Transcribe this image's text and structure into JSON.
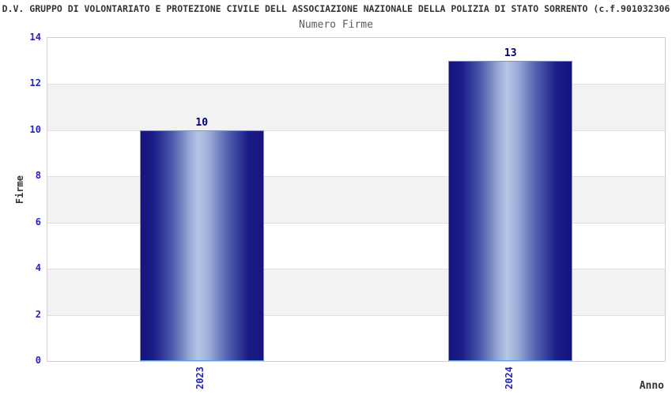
{
  "chart_data": {
    "type": "bar",
    "title": "D.V. GRUPPO DI VOLONTARIATO E PROTEZIONE CIVILE DELL ASSOCIAZIONE NAZIONALE DELLA POLIZIA DI STATO SORRENTO (c.f.901032306",
    "subtitle": "Numero Firme",
    "xlabel": "Anno",
    "ylabel": "Firme",
    "categories": [
      "2023",
      "2024"
    ],
    "values": [
      10,
      13
    ],
    "ylim": [
      0,
      14
    ],
    "yticks": [
      0,
      2,
      4,
      6,
      8,
      10,
      12,
      14
    ],
    "grid": "alternating horizontal bands every 2 units, light gridlines",
    "legend": "none",
    "colors": {
      "bar_edge_dark": "#15157c",
      "bar_highlight": "#b7c5e5",
      "bar_border": "#5d9ce6",
      "tick_label": "#2222cc",
      "value_label": "#00007d",
      "band_white": "#ffffff",
      "band_gray": "#f2f2f2",
      "gridline": "#e0e0e0",
      "plot_border": "#cfcfcf",
      "title_color": "#333333",
      "subtitle_color": "#5c5c5c",
      "axis_title_color": "#333333"
    }
  }
}
